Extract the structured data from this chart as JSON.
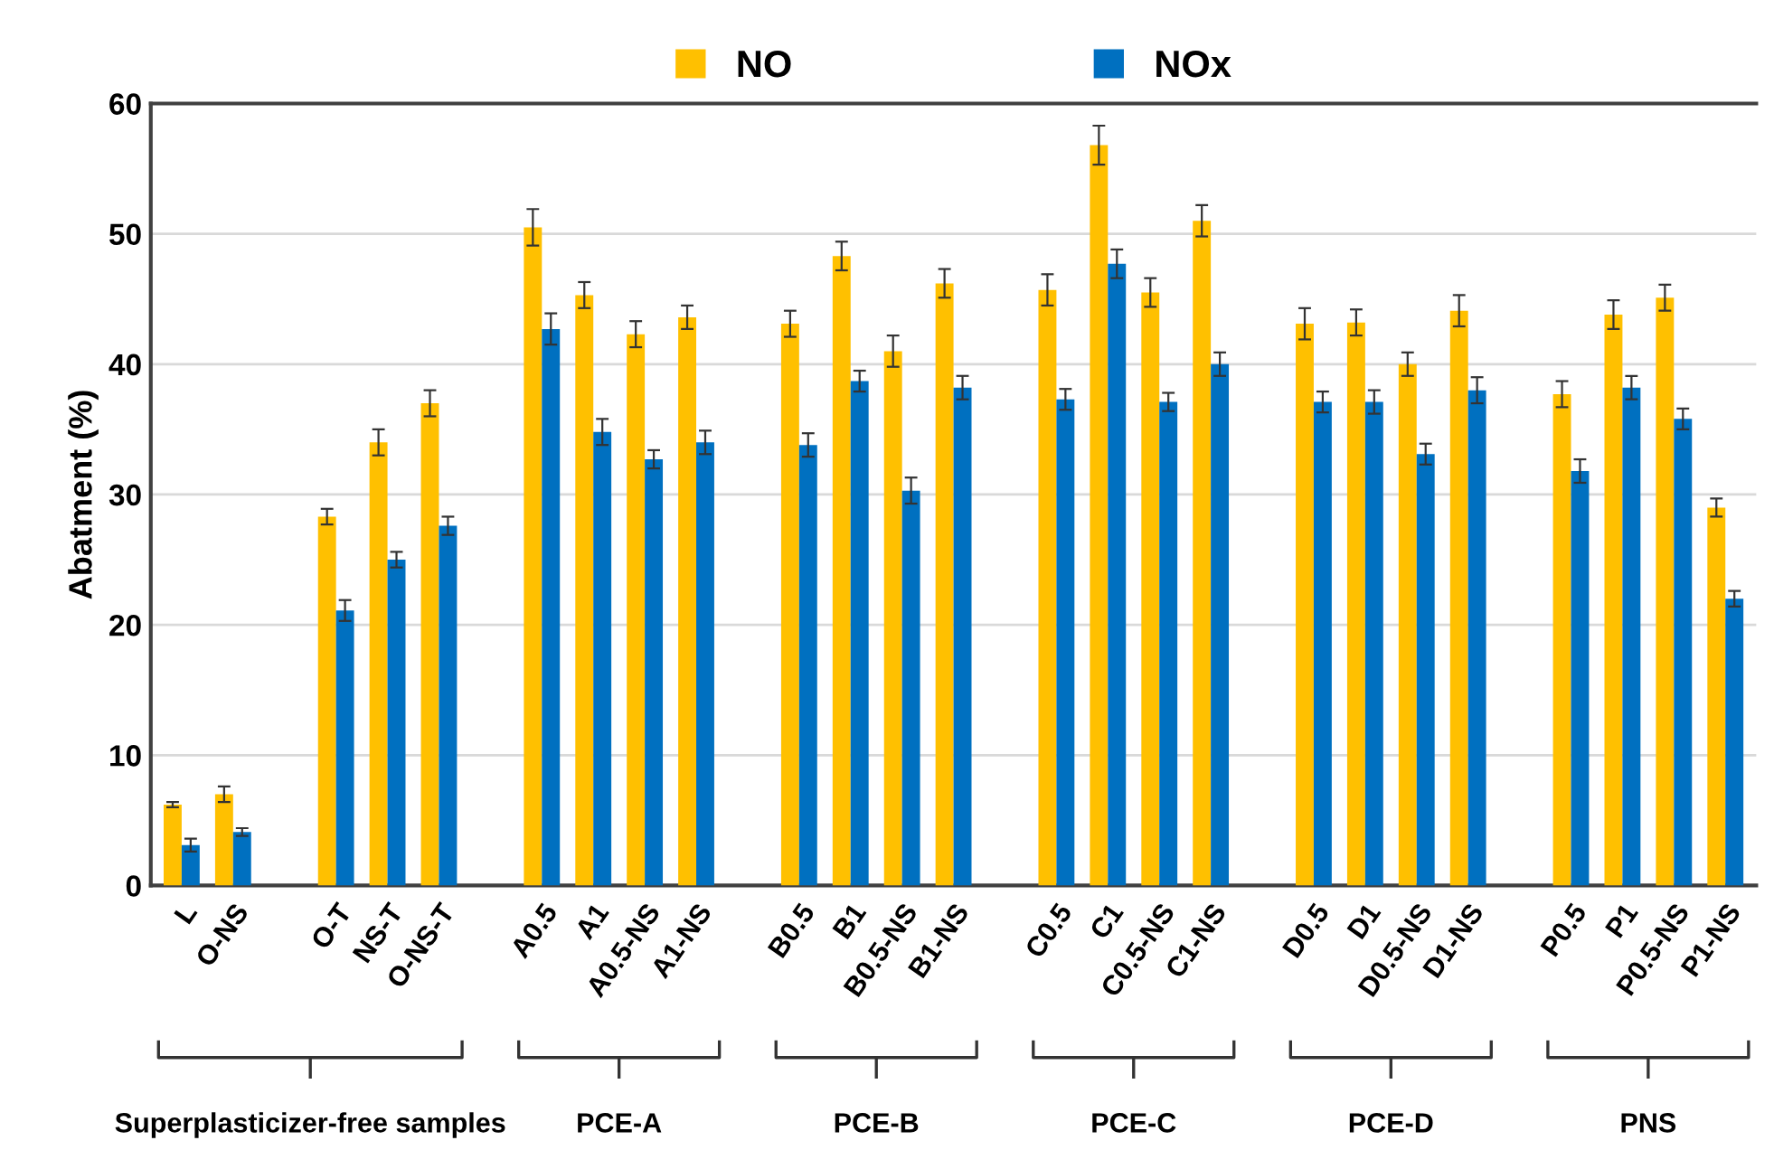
{
  "chart_data": {
    "type": "bar",
    "ylabel": "Abatment (%)",
    "categories": [
      "L",
      "O-NS",
      null,
      "O-T",
      "NS-T",
      "O-NS-T",
      null,
      "A0.5",
      "A1",
      "A0.5-NS",
      "A1-NS",
      null,
      "B0.5",
      "B1",
      "B0.5-NS",
      "B1-NS",
      null,
      "C0.5",
      "C1",
      "C0.5-NS",
      "C1-NS",
      null,
      "D0.5",
      "D1",
      "D0.5-NS",
      "D1-NS",
      null,
      "P0.5",
      "P1",
      "P0.5-NS",
      "P1-NS"
    ],
    "series": [
      {
        "name": "NO",
        "color": "#ffc000",
        "values": [
          6.2,
          7.0,
          null,
          28.3,
          34.0,
          37.0,
          null,
          50.5,
          45.3,
          42.3,
          43.6,
          null,
          43.1,
          48.3,
          41.0,
          46.2,
          null,
          45.7,
          56.8,
          45.5,
          51.0,
          null,
          43.1,
          43.2,
          40.0,
          44.1,
          null,
          37.7,
          43.8,
          45.1,
          29.0
        ],
        "errors": [
          0.2,
          0.6,
          null,
          0.6,
          1.0,
          1.0,
          null,
          1.4,
          1.0,
          1.0,
          0.9,
          null,
          1.0,
          1.1,
          1.2,
          1.1,
          null,
          1.2,
          1.5,
          1.1,
          1.2,
          null,
          1.2,
          1.0,
          0.9,
          1.2,
          null,
          1.0,
          1.1,
          1.0,
          0.7
        ]
      },
      {
        "name": "NOx",
        "color": "#0070c0",
        "values": [
          3.1,
          4.1,
          null,
          21.1,
          25.0,
          27.6,
          null,
          42.7,
          34.8,
          32.7,
          34.0,
          null,
          33.8,
          38.7,
          30.3,
          38.2,
          null,
          37.3,
          47.7,
          37.1,
          40.0,
          null,
          37.1,
          37.1,
          33.1,
          38.0,
          null,
          31.8,
          38.2,
          35.8,
          22.0
        ],
        "errors": [
          0.5,
          0.3,
          null,
          0.8,
          0.6,
          0.7,
          null,
          1.2,
          1.0,
          0.7,
          0.9,
          null,
          0.9,
          0.8,
          1.0,
          0.9,
          null,
          0.8,
          1.1,
          0.7,
          0.9,
          null,
          0.8,
          0.9,
          0.8,
          1.0,
          null,
          0.9,
          0.9,
          0.8,
          0.6
        ]
      }
    ],
    "ylim": [
      0,
      60
    ],
    "yticks": [
      0,
      10,
      20,
      30,
      40,
      50,
      60
    ],
    "grid": "y",
    "legend": "top",
    "annotations": [
      "Superplasticizer-free samples",
      "PCE-A",
      "PCE-B",
      "PCE-C",
      "PCE-D",
      "PNS"
    ]
  }
}
